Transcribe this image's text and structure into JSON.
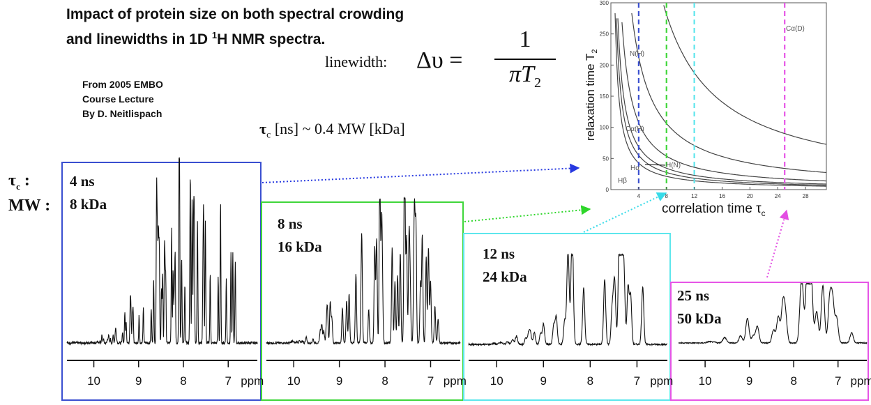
{
  "title": {
    "line1": "Impact of protein size on both spectral crowding",
    "line2_pre": "and linewidths in 1D ",
    "line2_sup": "1",
    "line2_post": "H NMR spectra."
  },
  "credit": [
    "From 2005 EMBO",
    "Course Lecture",
    "By D. Neitlispach"
  ],
  "formula": {
    "label": "linewidth:",
    "lhs": "Δυ =",
    "numerator": "1",
    "denominator": "πT",
    "denominator_sub": "2"
  },
  "tau_relation": {
    "tau": "τ",
    "sub": "c",
    "text": " [ns] ~ 0.4 MW [kDa]"
  },
  "row_labels": {
    "tau": "τ",
    "tau_sub": "c",
    "tau_colon": " :",
    "mw": "MW :"
  },
  "ppm_ticks": [
    "10",
    "9",
    "8",
    "7"
  ],
  "ppm_unit": "ppm",
  "spectra": [
    {
      "tc": "4 ns",
      "mw": "8 kDa",
      "color": "#3a4fd0"
    },
    {
      "tc": "8 ns",
      "mw": "16 kDa",
      "color": "#3fd63a"
    },
    {
      "tc": "12 ns",
      "mw": "24 kDa",
      "color": "#5de6ec"
    },
    {
      "tc": "25 ns",
      "mw": "50 kDa",
      "color": "#e655e6"
    }
  ],
  "t2_chart": {
    "ylabel": "relaxation time T",
    "ylabel_sub": "2",
    "xlabel": "correlation time τ",
    "xlabel_sub": "c",
    "y_ticks": [
      "300",
      "250",
      "200",
      "150",
      "100",
      "50",
      "0"
    ],
    "x_ticks": [
      "4",
      "8",
      "12",
      "16",
      "20",
      "24",
      "28"
    ],
    "curve_labels": [
      "Cα(D)",
      "N(H)",
      "Cα(H)",
      "Hα",
      "H(N)",
      "Hβ"
    ],
    "marker_lines": [
      {
        "tc": 4,
        "color": "#3a4fd0"
      },
      {
        "tc": 8,
        "color": "#3fd63a"
      },
      {
        "tc": 12,
        "color": "#5de6ec"
      },
      {
        "tc": 25,
        "color": "#e655e6"
      }
    ]
  }
}
